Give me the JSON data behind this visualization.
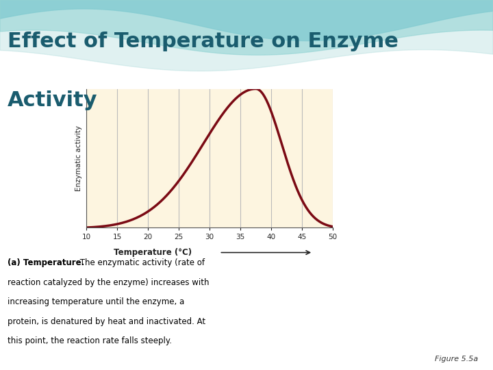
{
  "title_line1": "Effect of Temperature on Enzyme",
  "title_line2": "Activity",
  "title_color": "#1a5c6e",
  "title_fontsize": 22,
  "bg_color_slide": "#ffffff",
  "plot_bg_color": "#fdf5e0",
  "curve_color": "#7b0a14",
  "curve_linewidth": 2.5,
  "xlabel": "Temperature (°C)",
  "ylabel": "Enzymatic activity",
  "x_ticks": [
    10,
    15,
    20,
    25,
    30,
    35,
    40,
    45,
    50
  ],
  "x_min": 10,
  "x_max": 50,
  "y_min": 0,
  "y_max": 1.0,
  "grid_color": "#bbbbbb",
  "axis_color": "#555555",
  "caption_bold": "(a) Temperature.",
  "caption_normal": " The enzymatic activity (rate of reaction catalyzed by the enzyme) increases with increasing temperature until the enzyme, a protein, is denatured by heat and inactivated. At this point, the reaction rate falls steeply.",
  "figure_label": "Figure 5.5a",
  "caption_fontsize": 8.5,
  "figure_label_fontsize": 8
}
